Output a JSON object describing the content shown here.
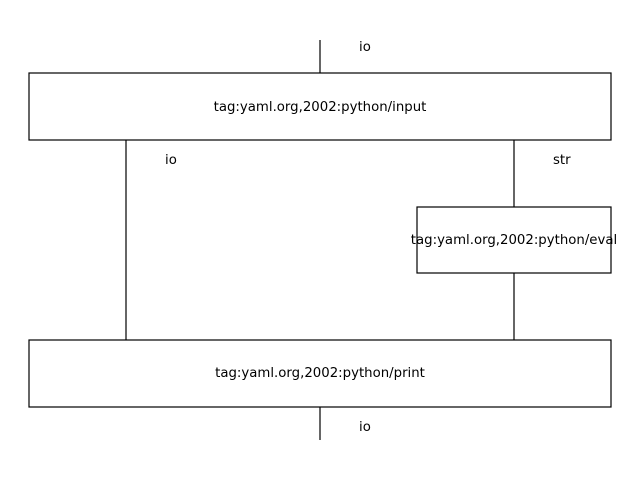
{
  "diagram": {
    "nodes": [
      {
        "id": "input",
        "label": "tag:yaml.org,2002:python/input"
      },
      {
        "id": "eval",
        "label": "tag:yaml.org,2002:python/eval"
      },
      {
        "id": "print",
        "label": "tag:yaml.org,2002:python/print"
      }
    ],
    "edges": [
      {
        "id": "in-io",
        "from": null,
        "to": "input",
        "label": "io"
      },
      {
        "id": "input-print-io",
        "from": "input",
        "to": "print",
        "label": "io"
      },
      {
        "id": "input-eval-str",
        "from": "input",
        "to": "eval",
        "label": "str"
      },
      {
        "id": "eval-print",
        "from": "eval",
        "to": "print",
        "label": ""
      },
      {
        "id": "out-io",
        "from": "print",
        "to": null,
        "label": "io"
      }
    ]
  }
}
